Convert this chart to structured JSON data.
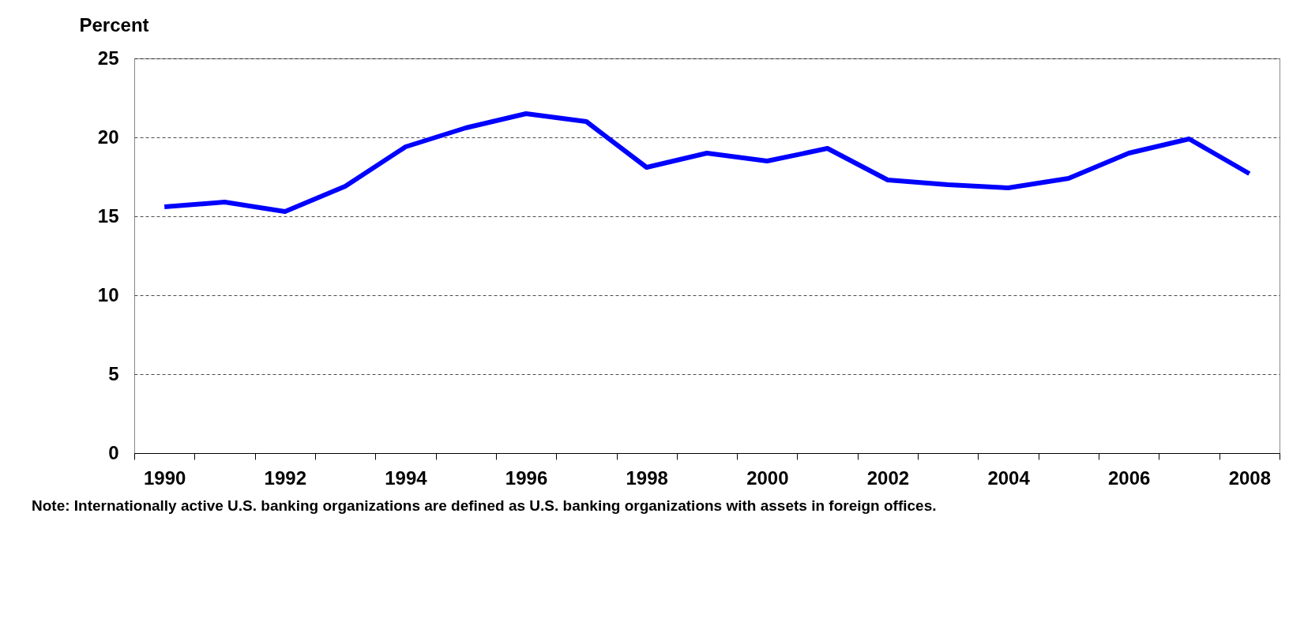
{
  "chart_data": {
    "type": "line",
    "ylabel": "Percent",
    "categories": [
      "1990",
      null,
      "1992",
      null,
      "1994",
      null,
      "1996",
      null,
      "1998",
      null,
      "2000",
      null,
      "2002",
      null,
      "2004",
      null,
      "2006",
      null,
      "2008"
    ],
    "series": [
      {
        "color": "#0000ff",
        "values": [
          15.6,
          15.9,
          15.3,
          16.9,
          19.4,
          20.6,
          21.5,
          21.0,
          18.1,
          19.0,
          18.5,
          19.3,
          17.3,
          17.0,
          16.8,
          17.4,
          19.0,
          19.9,
          17.7
        ]
      }
    ],
    "ylim": [
      0,
      25
    ],
    "yticks": [
      0,
      5,
      10,
      15,
      20,
      25
    ],
    "grid": "y",
    "line_style": "solid",
    "annotations": [
      "Note:  Internationally active U.S. banking organizations are defined as U.S. banking organizations with assets in foreign offices."
    ]
  }
}
